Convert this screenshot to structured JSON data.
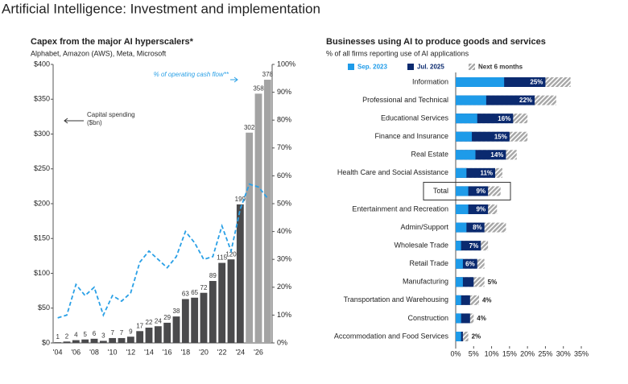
{
  "page_title": "Artificial Intelligence: Investment and implementation",
  "chart_data": [
    {
      "type": "bar",
      "title": "Capex from the major AI hyperscalers*",
      "subtitle": "Alphabet, Amazon (AWS), Meta, Microsoft",
      "categories": [
        "'04",
        null,
        "'06",
        null,
        "'08",
        null,
        "'10",
        null,
        "'12",
        null,
        "'14",
        null,
        "'16",
        null,
        "'18",
        null,
        "'20",
        null,
        "'22",
        null,
        "'24",
        null,
        "'26",
        null
      ],
      "series": [
        {
          "name": "Capital spending ($bn)",
          "colors": [
            "#4a4a4c",
            "#4a4a4c",
            "#4a4a4c",
            "#4a4a4c",
            "#4a4a4c",
            "#4a4a4c",
            "#4a4a4c",
            "#4a4a4c",
            "#4a4a4c",
            "#4a4a4c",
            "#4a4a4c",
            "#4a4a4c",
            "#4a4a4c",
            "#4a4a4c",
            "#4a4a4c",
            "#4a4a4c",
            "#4a4a4c",
            "#4a4a4c",
            "#4a4a4c",
            "#4a4a4c",
            "#4a4a4c",
            "#a3a3a3",
            "#a3a3a3",
            "#a3a3a3"
          ],
          "values": [
            1,
            2,
            4,
            5,
            6,
            3,
            7,
            7,
            9,
            17,
            22,
            24,
            29,
            38,
            63,
            65,
            72,
            89,
            115,
            120,
            199,
            302,
            358,
            378
          ]
        },
        {
          "name": "% of operating cash flow**",
          "type": "line",
          "axis": "y2",
          "color": "#2aa0e6",
          "line_style": "dashed",
          "values": [
            9,
            10,
            21,
            17,
            20,
            10,
            17,
            15,
            18,
            29,
            33,
            30,
            27,
            31,
            40,
            36,
            30,
            31,
            42,
            33,
            48,
            57,
            56,
            52
          ]
        }
      ],
      "ylim": [
        0,
        400
      ],
      "yticks": [
        {
          "value": 0,
          "label": "$0"
        },
        {
          "value": 50,
          "label": "$50"
        },
        {
          "value": 100,
          "label": "$100"
        },
        {
          "value": 150,
          "label": "$150"
        },
        {
          "value": 200,
          "label": "$200"
        },
        {
          "value": 250,
          "label": "$250"
        },
        {
          "value": 300,
          "label": "$300"
        },
        {
          "value": 350,
          "label": "$350"
        },
        {
          "value": 400,
          "label": "$400"
        }
      ],
      "y2lim": [
        0,
        100
      ],
      "y2ticks": [
        {
          "value": 0,
          "label": "0%"
        },
        {
          "value": 10,
          "label": "10%"
        },
        {
          "value": 20,
          "label": "20%"
        },
        {
          "value": 30,
          "label": "30%"
        },
        {
          "value": 40,
          "label": "40%"
        },
        {
          "value": 50,
          "label": "50%"
        },
        {
          "value": 60,
          "label": "60%"
        },
        {
          "value": 70,
          "label": "70%"
        },
        {
          "value": 80,
          "label": "80%"
        },
        {
          "value": 90,
          "label": "90%"
        },
        {
          "value": 100,
          "label": "100%"
        }
      ]
    },
    {
      "type": "horizontal_bar",
      "title": "Businesses using AI to produce goods and services",
      "subtitle": "% of all firms reporting use of AI applications",
      "legend": "top",
      "categories": [
        "Information",
        "Professional and Technical",
        "Educational Services",
        "Finance and Insurance",
        "Real Estate",
        "Health Care and Social Assistance",
        "Total",
        "Entertainment and Recreation",
        "Admin/Support",
        "Wholesale Trade",
        "Retail Trade",
        "Manufacturing",
        "Transportation and Warehousing",
        "Construction",
        "Accommodation and Food Services"
      ],
      "highlight_index": 6,
      "series": [
        {
          "name": "Sep. 2023",
          "color": "#1e9be9",
          "values": [
            13.5,
            8.5,
            6,
            4.5,
            5.5,
            3,
            3.5,
            3.5,
            3,
            1.5,
            2,
            2,
            1.5,
            1.5,
            1.5
          ]
        },
        {
          "name": "Jul. 2025",
          "color": "#0b2a6f",
          "values": [
            25,
            22,
            16,
            15,
            14,
            11,
            9,
            9,
            8,
            7,
            6,
            5,
            4,
            4,
            2
          ],
          "value_labels": [
            "25%",
            "22%",
            "16%",
            "15%",
            "14%",
            "11%",
            "9%",
            "9%",
            "8%",
            "7%",
            "6%",
            "5%",
            "4%",
            "4%",
            "2%"
          ]
        },
        {
          "name": "Next 6 months",
          "color": "#a6a6a6",
          "hatched": true,
          "values": [
            32,
            28,
            20,
            20,
            17,
            13,
            12.5,
            11.5,
            14,
            9,
            8,
            8,
            6.5,
            5,
            3.5
          ]
        }
      ],
      "xlim": [
        0,
        35
      ],
      "xticks": [
        {
          "value": 0,
          "label": "0%"
        },
        {
          "value": 5,
          "label": "5%"
        },
        {
          "value": 10,
          "label": "10%"
        },
        {
          "value": 15,
          "label": "15%"
        },
        {
          "value": 20,
          "label": "20%"
        },
        {
          "value": 25,
          "label": "25%"
        },
        {
          "value": 30,
          "label": "30%"
        },
        {
          "value": 35,
          "label": "35%"
        }
      ]
    }
  ]
}
